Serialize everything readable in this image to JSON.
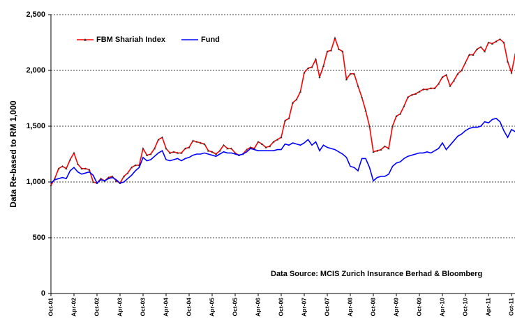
{
  "chart_data": {
    "type": "line",
    "y_label": "Data Re-based to RM 1,000",
    "annotation": "Data Source: MCIS Zurich Insurance Berhad & Bloomberg",
    "categories": [
      "Oct-01",
      null,
      null,
      null,
      null,
      null,
      "Apr-02",
      null,
      null,
      null,
      null,
      null,
      "Oct-02",
      null,
      null,
      null,
      null,
      null,
      "Apr-03",
      null,
      null,
      null,
      null,
      null,
      "Oct-03",
      null,
      null,
      null,
      null,
      null,
      "Apr-04",
      null,
      null,
      null,
      null,
      null,
      "Oct-04",
      null,
      null,
      null,
      null,
      null,
      "Apr-05",
      null,
      null,
      null,
      null,
      null,
      "Oct-05",
      null,
      null,
      null,
      null,
      null,
      "Apr-06",
      null,
      null,
      null,
      null,
      null,
      "Oct-06",
      null,
      null,
      null,
      null,
      null,
      "Apr-07",
      null,
      null,
      null,
      null,
      null,
      "Oct-07",
      null,
      null,
      null,
      null,
      null,
      "Apr-08",
      null,
      null,
      null,
      null,
      null,
      "Oct-08",
      null,
      null,
      null,
      null,
      null,
      "Apr-09",
      null,
      null,
      null,
      null,
      null,
      "Oct-09",
      null,
      null,
      null,
      null,
      null,
      "Apr-10",
      null,
      null,
      null,
      null,
      null,
      "Oct-10",
      null,
      null,
      null,
      null,
      null,
      "Apr-11",
      null,
      null,
      null,
      null,
      null,
      "Oct-11",
      null
    ],
    "series": [
      {
        "name": "FBM Shariah Index",
        "color": "#ff0000",
        "marker": "triangle",
        "marker_color": "#333333",
        "values": [
          970,
          1030,
          1120,
          1140,
          1120,
          1200,
          1260,
          1160,
          1120,
          1120,
          1110,
          1000,
          990,
          1030,
          1010,
          1040,
          1050,
          1010,
          990,
          1050,
          1080,
          1130,
          1150,
          1150,
          1300,
          1240,
          1250,
          1300,
          1380,
          1400,
          1300,
          1260,
          1270,
          1260,
          1260,
          1300,
          1310,
          1370,
          1360,
          1350,
          1340,
          1280,
          1270,
          1250,
          1280,
          1330,
          1300,
          1300,
          1260,
          1240,
          1250,
          1290,
          1310,
          1300,
          1360,
          1340,
          1310,
          1320,
          1360,
          1380,
          1400,
          1550,
          1570,
          1710,
          1740,
          1810,
          1980,
          2020,
          2030,
          2100,
          1940,
          2040,
          2170,
          2180,
          2290,
          2190,
          2170,
          1920,
          1970,
          1970,
          1860,
          1760,
          1640,
          1500,
          1270,
          1280,
          1290,
          1320,
          1300,
          1500,
          1590,
          1610,
          1680,
          1760,
          1780,
          1790,
          1810,
          1830,
          1830,
          1840,
          1840,
          1880,
          1940,
          1960,
          1860,
          1910,
          1970,
          2000,
          2070,
          2140,
          2140,
          2190,
          2210,
          2170,
          2250,
          2240,
          2260,
          2280,
          2250,
          2080,
          1980,
          2150
        ]
      },
      {
        "name": "Fund",
        "color": "#0000ff",
        "values": [
          990,
          1020,
          1030,
          1040,
          1030,
          1100,
          1130,
          1090,
          1070,
          1080,
          1090,
          1060,
          990,
          1020,
          1010,
          1030,
          1040,
          1020,
          990,
          1000,
          1030,
          1060,
          1100,
          1130,
          1220,
          1190,
          1200,
          1230,
          1260,
          1280,
          1200,
          1190,
          1200,
          1210,
          1190,
          1210,
          1220,
          1240,
          1250,
          1250,
          1260,
          1250,
          1240,
          1230,
          1250,
          1270,
          1260,
          1260,
          1250,
          1240,
          1250,
          1270,
          1300,
          1290,
          1280,
          1280,
          1280,
          1280,
          1280,
          1290,
          1290,
          1340,
          1330,
          1350,
          1340,
          1330,
          1350,
          1380,
          1330,
          1360,
          1280,
          1330,
          1310,
          1300,
          1290,
          1270,
          1250,
          1220,
          1140,
          1130,
          1100,
          1210,
          1210,
          1130,
          1010,
          1040,
          1050,
          1050,
          1070,
          1140,
          1170,
          1180,
          1210,
          1230,
          1240,
          1250,
          1260,
          1260,
          1270,
          1260,
          1280,
          1300,
          1350,
          1290,
          1330,
          1370,
          1410,
          1430,
          1460,
          1480,
          1490,
          1490,
          1500,
          1540,
          1530,
          1560,
          1570,
          1540,
          1460,
          1400,
          1470,
          1450
        ]
      }
    ],
    "ylim": [
      0,
      2500
    ],
    "yticks": [
      0,
      500,
      {
        "value": 1000,
        "label": "1,000"
      },
      {
        "value": 1500,
        "label": "1,500"
      },
      {
        "value": 2000,
        "label": "2,000"
      },
      {
        "value": 2500,
        "label": "2,500"
      }
    ],
    "grid": true,
    "legend": "top-left"
  }
}
